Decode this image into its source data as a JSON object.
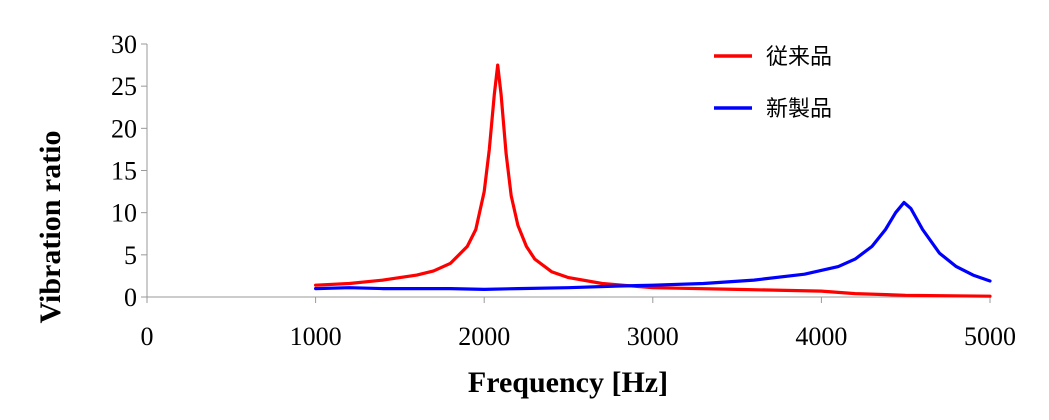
{
  "chart_data": {
    "type": "line",
    "xlabel": "Frequency [Hz]",
    "ylabel": "Vibration ratio",
    "xlim": [
      0,
      5000
    ],
    "ylim": [
      0,
      30
    ],
    "xticks": [
      "0",
      "1000",
      "2000",
      "3000",
      "4000",
      "5000"
    ],
    "yticks": [
      "0",
      "5",
      "10",
      "15",
      "20",
      "25",
      "30"
    ],
    "grid": false,
    "legend_position": "top-right",
    "series": [
      {
        "name": "従来品",
        "color": "#ff0000",
        "points": [
          [
            1000,
            1.4
          ],
          [
            1200,
            1.6
          ],
          [
            1400,
            2.0
          ],
          [
            1600,
            2.6
          ],
          [
            1700,
            3.1
          ],
          [
            1800,
            4.0
          ],
          [
            1900,
            6.0
          ],
          [
            1950,
            8.0
          ],
          [
            2000,
            12.5
          ],
          [
            2030,
            17.5
          ],
          [
            2060,
            24.0
          ],
          [
            2080,
            27.5
          ],
          [
            2100,
            24.0
          ],
          [
            2130,
            17.0
          ],
          [
            2160,
            12.0
          ],
          [
            2200,
            8.5
          ],
          [
            2250,
            6.0
          ],
          [
            2300,
            4.5
          ],
          [
            2400,
            3.0
          ],
          [
            2500,
            2.3
          ],
          [
            2700,
            1.6
          ],
          [
            3000,
            1.1
          ],
          [
            3500,
            0.9
          ],
          [
            4000,
            0.7
          ],
          [
            4200,
            0.4
          ],
          [
            4500,
            0.2
          ],
          [
            5000,
            0.1
          ]
        ]
      },
      {
        "name": "新製品",
        "color": "#0000ff",
        "points": [
          [
            1000,
            1.0
          ],
          [
            1200,
            1.1
          ],
          [
            1400,
            1.0
          ],
          [
            1600,
            1.0
          ],
          [
            1800,
            1.0
          ],
          [
            2000,
            0.9
          ],
          [
            2200,
            1.0
          ],
          [
            2500,
            1.1
          ],
          [
            2800,
            1.3
          ],
          [
            3000,
            1.4
          ],
          [
            3300,
            1.6
          ],
          [
            3600,
            2.0
          ],
          [
            3900,
            2.7
          ],
          [
            4100,
            3.6
          ],
          [
            4200,
            4.5
          ],
          [
            4300,
            6.0
          ],
          [
            4380,
            8.0
          ],
          [
            4440,
            10.0
          ],
          [
            4490,
            11.2
          ],
          [
            4530,
            10.5
          ],
          [
            4600,
            8.0
          ],
          [
            4700,
            5.2
          ],
          [
            4800,
            3.6
          ],
          [
            4900,
            2.6
          ],
          [
            5000,
            1.9
          ]
        ]
      }
    ]
  }
}
